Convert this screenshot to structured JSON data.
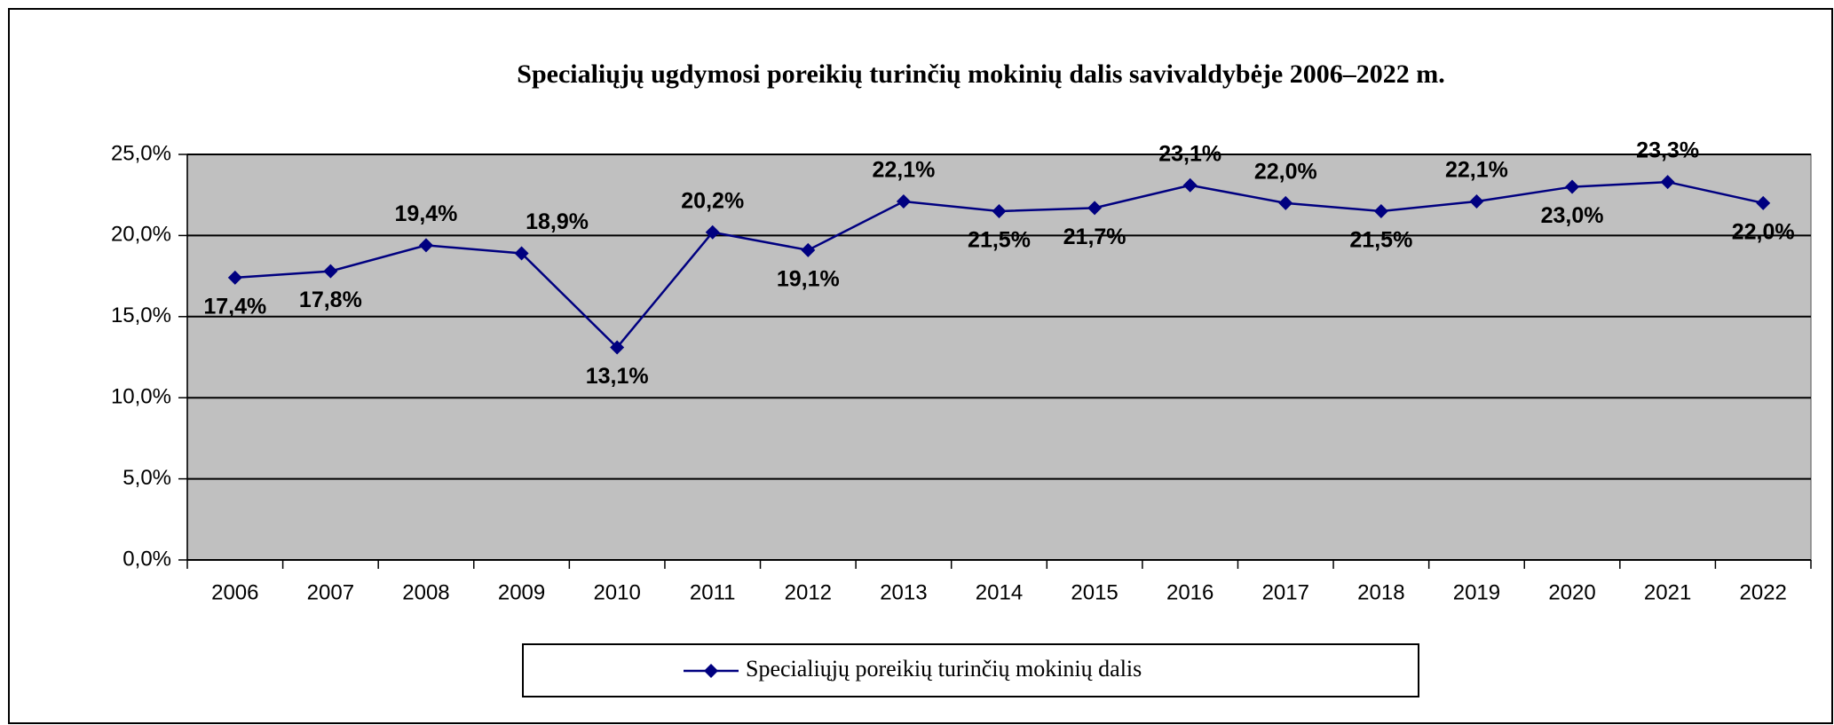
{
  "chart_data": {
    "type": "line",
    "title": "Specialiųjų ugdymosi poreikių turinčių mokinių dalis savivaldybėje 2006–2022 m.",
    "categories": [
      "2006",
      "2007",
      "2008",
      "2009",
      "2010",
      "2011",
      "2012",
      "2013",
      "2014",
      "2015",
      "2016",
      "2017",
      "2018",
      "2019",
      "2020",
      "2021",
      "2022"
    ],
    "series": [
      {
        "name": "Specialiųjų poreikių turinčių mokinių dalis",
        "color": "#000080",
        "values": [
          17.4,
          17.8,
          19.4,
          18.9,
          13.1,
          20.2,
          19.1,
          22.1,
          21.5,
          21.7,
          23.1,
          22.0,
          21.5,
          22.1,
          23.0,
          23.3,
          22.0
        ],
        "value_labels": [
          "17,4%",
          "17,8%",
          "19,4%",
          "18,9%",
          "13,1%",
          "20,2%",
          "19,1%",
          "22,1%",
          "21,5%",
          "21,7%",
          "23,1%",
          "22,0%",
          "21,5%",
          "22,1%",
          "23,0%",
          "23,3%",
          "22,0%"
        ]
      }
    ],
    "ylim": [
      0,
      25
    ],
    "yticks": [
      {
        "value": 0,
        "label": "0,0%"
      },
      {
        "value": 5,
        "label": "5,0%"
      },
      {
        "value": 10,
        "label": "10,0%"
      },
      {
        "value": 15,
        "label": "15,0%"
      },
      {
        "value": 20,
        "label": "20,0%"
      },
      {
        "value": 25,
        "label": "25,0%"
      }
    ],
    "grid": true,
    "legend": "bottom"
  }
}
